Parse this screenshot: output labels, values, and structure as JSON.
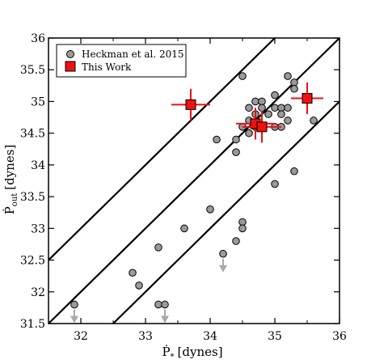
{
  "chart_data": {
    "type": "scatter",
    "xlabel": "Ṗ",
    "xlabel_sub": "*",
    "xlabel_unit": "[dynes]",
    "ylabel": "Ṗ",
    "ylabel_sub": "out",
    "ylabel_unit": "[dynes]",
    "xlim": [
      31.5,
      36
    ],
    "ylim": [
      31.5,
      36
    ],
    "x_ticks": [
      32,
      33,
      34,
      35,
      36
    ],
    "y_ticks": [
      31.5,
      32,
      32.5,
      33,
      33.5,
      34,
      34.5,
      35,
      35.5,
      36
    ],
    "x_tick_labels": [
      "32",
      "33",
      "34",
      "35",
      "36"
    ],
    "y_tick_labels": [
      "31.5",
      "32",
      "32.5",
      "33",
      "33.5",
      "34",
      "34.5",
      "35",
      "35.5",
      "36"
    ],
    "grid": false,
    "legend_position": "top-left",
    "lines": [
      {
        "slope": 1,
        "intercept": 1
      },
      {
        "slope": 1,
        "intercept": 0
      },
      {
        "slope": 1,
        "intercept": -1
      }
    ],
    "series": [
      {
        "name": "Heckman et al. 2015",
        "marker": "circle",
        "color": "#9a9a9a",
        "points": [
          [
            34.5,
            35.4
          ],
          [
            35.2,
            35.4
          ],
          [
            35.3,
            35.3
          ],
          [
            35.3,
            35.2
          ],
          [
            34.6,
            34.9
          ],
          [
            34.7,
            35.0
          ],
          [
            34.8,
            35.0
          ],
          [
            34.7,
            34.8
          ],
          [
            34.8,
            34.9
          ],
          [
            34.9,
            34.8
          ],
          [
            35.0,
            34.9
          ],
          [
            35.1,
            34.9
          ],
          [
            35.2,
            34.9
          ],
          [
            35.0,
            35.1
          ],
          [
            35.1,
            34.8
          ],
          [
            35.2,
            34.7
          ],
          [
            34.5,
            34.6
          ],
          [
            34.6,
            34.7
          ],
          [
            34.7,
            34.6
          ],
          [
            35.0,
            34.6
          ],
          [
            35.1,
            34.6
          ],
          [
            35.6,
            34.7
          ],
          [
            34.4,
            34.4
          ],
          [
            34.1,
            34.4
          ],
          [
            34.4,
            34.2
          ],
          [
            34.6,
            34.5
          ],
          [
            35.3,
            33.9
          ],
          [
            35.0,
            33.7
          ],
          [
            34.0,
            33.3
          ],
          [
            34.5,
            33.1
          ],
          [
            33.6,
            33.0
          ],
          [
            34.5,
            33.0
          ],
          [
            34.4,
            32.8
          ],
          [
            33.2,
            32.7
          ],
          [
            34.2,
            32.6
          ],
          [
            32.8,
            32.3
          ],
          [
            32.9,
            32.1
          ],
          [
            31.9,
            31.8
          ],
          [
            33.2,
            31.8
          ],
          [
            33.3,
            31.8
          ]
        ],
        "upper_limits": [
          [
            34.2,
            32.6
          ],
          [
            31.9,
            31.8
          ],
          [
            33.3,
            31.8
          ]
        ]
      },
      {
        "name": "This Work",
        "marker": "square",
        "color": "#ee1111",
        "points": [
          {
            "x": 33.7,
            "y": 34.95,
            "xerr": 0.3,
            "yerr": 0.25
          },
          {
            "x": 34.7,
            "y": 34.65,
            "xerr": 0.3,
            "yerr": 0.25
          },
          {
            "x": 34.8,
            "y": 34.6,
            "xerr": 0.3,
            "yerr": 0.25
          },
          {
            "x": 35.5,
            "y": 35.05,
            "xerr": 0.25,
            "yerr": 0.25
          }
        ]
      }
    ]
  }
}
